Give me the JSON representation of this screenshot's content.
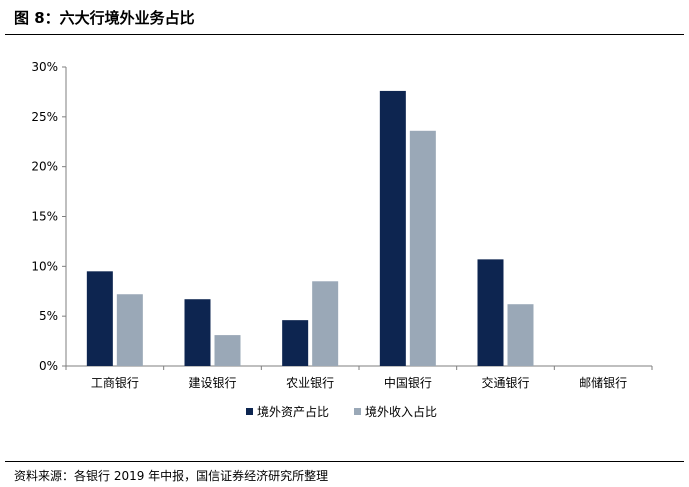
{
  "figure_title": "图 8：六大行境外业务占比",
  "source_note": "资料来源：各银行 2019 年中报，国信证券经济研究所整理",
  "chart_data": {
    "type": "bar",
    "title": "",
    "xlabel": "",
    "ylabel": "",
    "categories": [
      "工商银行",
      "建设银行",
      "农业银行",
      "中国银行",
      "交通银行",
      "邮储银行"
    ],
    "series": [
      {
        "name": "境外资产占比",
        "color": "#0d2550",
        "values": [
          9.5,
          6.7,
          4.6,
          27.6,
          10.7,
          null
        ]
      },
      {
        "name": "境外收入占比",
        "color": "#9aa8b7",
        "values": [
          7.2,
          3.1,
          8.5,
          23.6,
          6.2,
          null
        ]
      }
    ],
    "ylim": [
      0,
      30
    ],
    "yticks": [
      "0%",
      "5%",
      "10%",
      "15%",
      "20%",
      "25%",
      "30%"
    ],
    "grid": false,
    "legend_position": "bottom"
  }
}
